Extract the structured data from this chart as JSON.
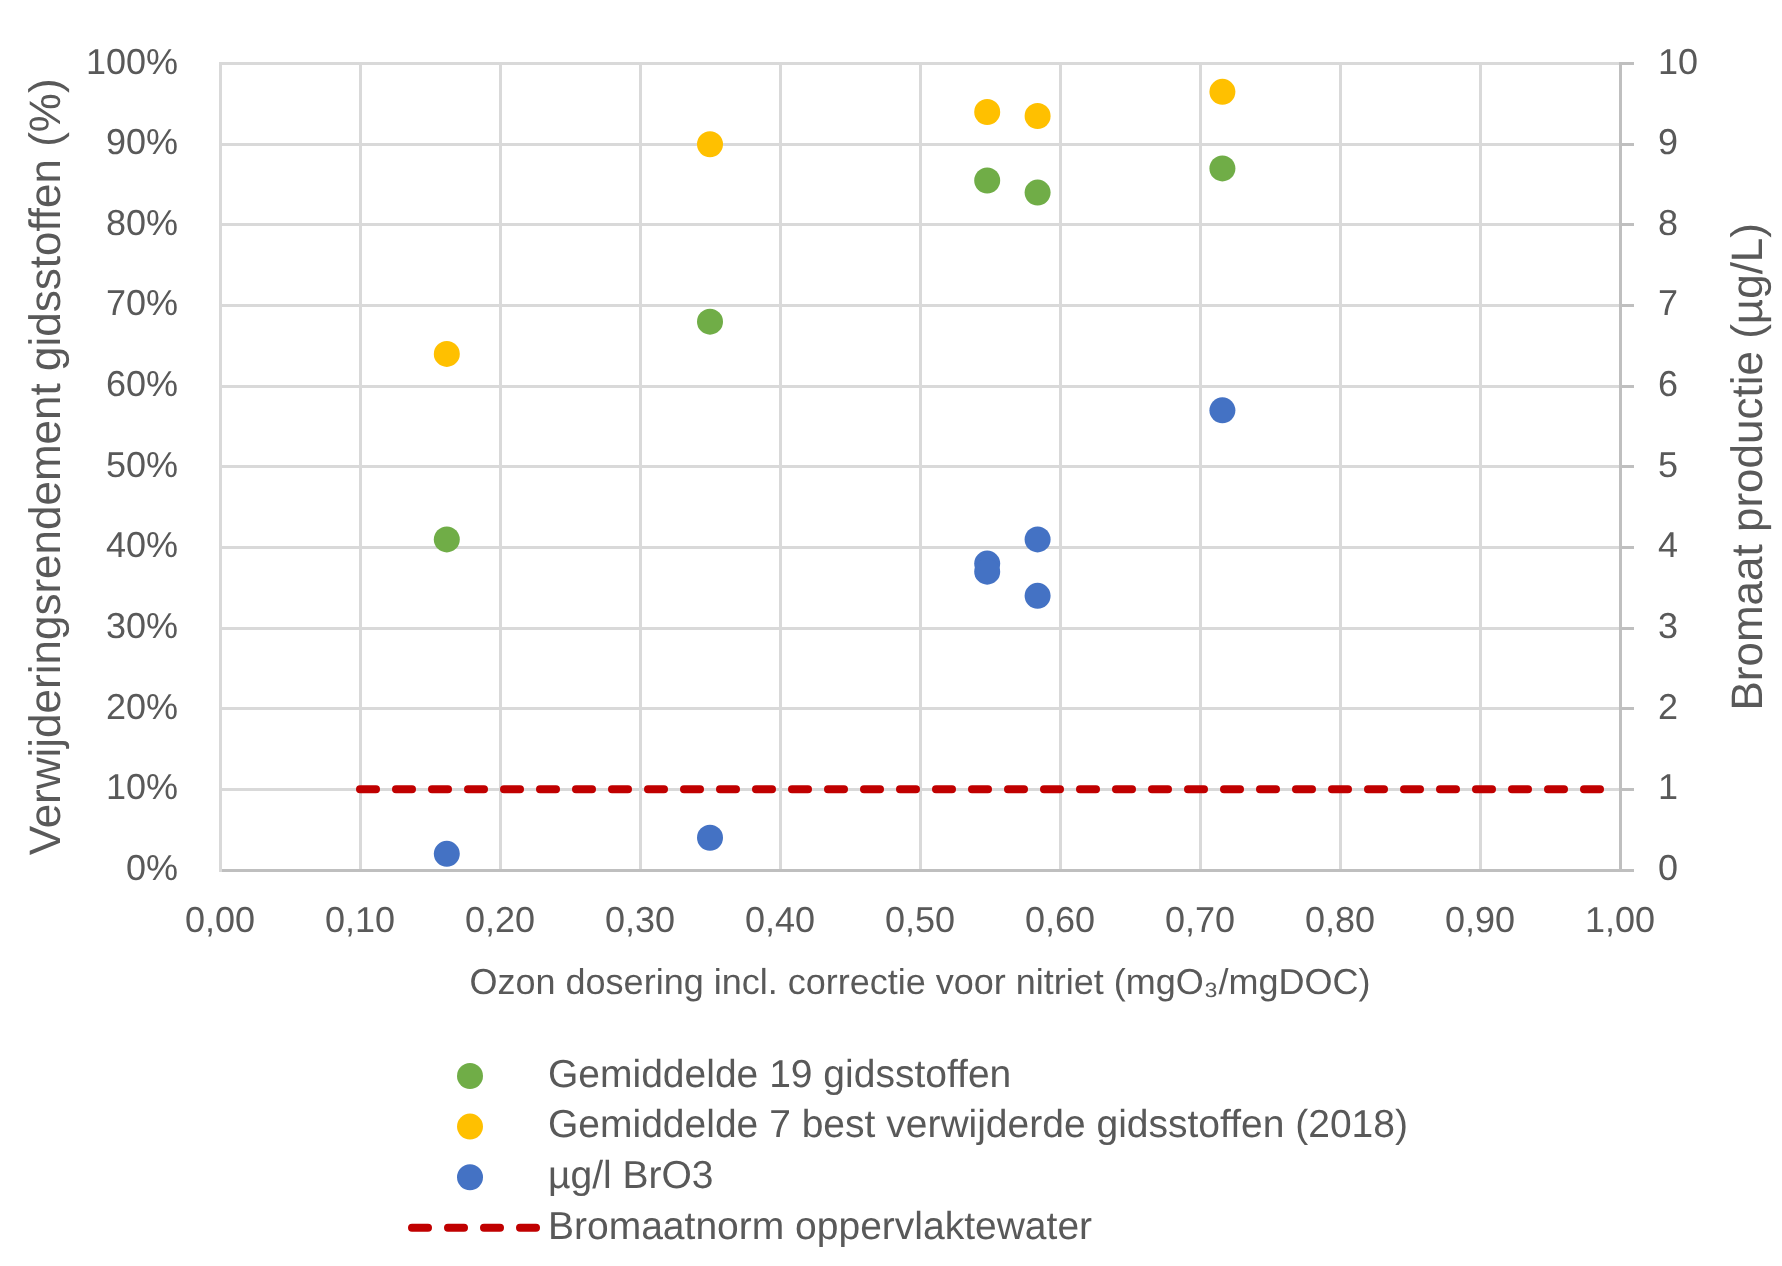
{
  "chart_data": {
    "type": "scatter",
    "xlabel": "Ozon dosering incl. correctie voor nitriet (mgO₃/mgDOC)",
    "ylabel": "Verwijderingsrendement gidsstoffen (%)",
    "y2label": "Bromaat productie (µg/L)",
    "xlim": [
      0,
      1
    ],
    "xticks": [
      {
        "value": 0,
        "label": "0,00"
      },
      {
        "value": 0.1,
        "label": "0,10"
      },
      {
        "value": 0.2,
        "label": "0,20"
      },
      {
        "value": 0.3,
        "label": "0,30"
      },
      {
        "value": 0.4,
        "label": "0,40"
      },
      {
        "value": 0.5,
        "label": "0,50"
      },
      {
        "value": 0.6,
        "label": "0,60"
      },
      {
        "value": 0.7,
        "label": "0,70"
      },
      {
        "value": 0.8,
        "label": "0,80"
      },
      {
        "value": 0.9,
        "label": "0,90"
      },
      {
        "value": 1,
        "label": "1,00"
      }
    ],
    "ylim": [
      0,
      100
    ],
    "yticks": [
      {
        "value": 0,
        "label": "0%"
      },
      {
        "value": 10,
        "label": "10%"
      },
      {
        "value": 20,
        "label": "20%"
      },
      {
        "value": 30,
        "label": "30%"
      },
      {
        "value": 40,
        "label": "40%"
      },
      {
        "value": 50,
        "label": "50%"
      },
      {
        "value": 60,
        "label": "60%"
      },
      {
        "value": 70,
        "label": "70%"
      },
      {
        "value": 80,
        "label": "80%"
      },
      {
        "value": 90,
        "label": "90%"
      },
      {
        "value": 100,
        "label": "100%"
      }
    ],
    "y2lim": [
      0,
      10
    ],
    "y2ticks": [
      0,
      1,
      2,
      3,
      4,
      5,
      6,
      7,
      8,
      9,
      10
    ],
    "series": [
      {
        "name": "Gemiddelde 19 gidsstoffen",
        "color": "#70ad47",
        "x": [
          0.162,
          0.35,
          0.548,
          0.584,
          0.716
        ],
        "values": [
          41,
          68,
          85.5,
          84,
          87
        ]
      },
      {
        "name": "Gemiddelde 7 best verwijderde gidsstoffen (2018)",
        "color": "#ffc000",
        "x": [
          0.162,
          0.35,
          0.548,
          0.584,
          0.716
        ],
        "values": [
          64,
          90,
          94,
          93.5,
          96.5
        ]
      },
      {
        "name": "µg/l BrO3",
        "color": "#4472c4",
        "axis": "y2",
        "x": [
          0.162,
          0.35,
          0.548,
          0.548,
          0.584,
          0.584,
          0.716
        ],
        "values": [
          0.2,
          0.4,
          3.8,
          3.7,
          4.1,
          3.4,
          5.7
        ]
      },
      {
        "name": "Bromaatnorm oppervlaktewater",
        "type": "line",
        "color": "#c00000",
        "axis": "y2",
        "line_style": "dashed",
        "marker": "none",
        "x": [
          0.1,
          0.99
        ],
        "values": [
          1,
          1
        ]
      }
    ],
    "marker": "circle",
    "grid": true,
    "legend": "bottom"
  }
}
